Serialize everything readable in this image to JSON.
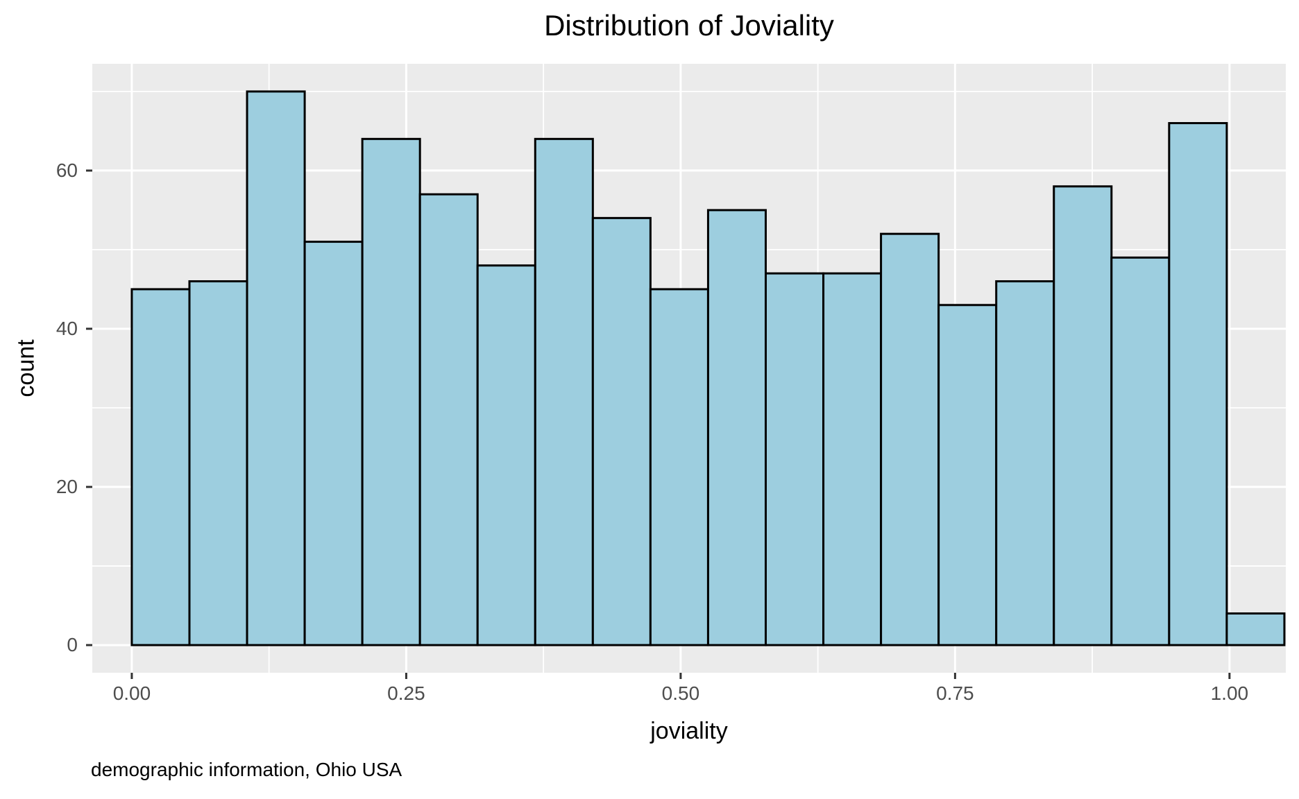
{
  "chart_data": {
    "type": "bar",
    "subtype": "histogram",
    "title": "Distribution of Joviality",
    "xlabel": "joviality",
    "ylabel": "count",
    "caption": "demographic information, Ohio USA",
    "bin_start": 0,
    "bin_width": 0.0525,
    "counts": [
      45,
      46,
      70,
      51,
      64,
      57,
      48,
      64,
      54,
      45,
      55,
      47,
      47,
      52,
      43,
      46,
      58,
      49,
      66,
      4
    ],
    "x_ticks": [
      {
        "value": 0.0,
        "label": "0.00"
      },
      {
        "value": 0.25,
        "label": "0.25"
      },
      {
        "value": 0.5,
        "label": "0.50"
      },
      {
        "value": 0.75,
        "label": "0.75"
      },
      {
        "value": 1.0,
        "label": "1.00"
      }
    ],
    "y_ticks": [
      {
        "value": 0,
        "label": "0"
      },
      {
        "value": 20,
        "label": "20"
      },
      {
        "value": 40,
        "label": "40"
      },
      {
        "value": 60,
        "label": "60"
      }
    ],
    "x_minor_gridlines": [
      0.125,
      0.375,
      0.625,
      0.875
    ],
    "y_minor_gridlines": [
      10,
      30,
      50,
      70
    ],
    "xlim": [
      -0.036,
      1.0513
    ],
    "ylim": [
      -3.5,
      73.5
    ],
    "grid": true,
    "legend": "none",
    "colors": {
      "bar_fill": "#9dcedf",
      "bar_stroke": "#000000",
      "panel_background": "#ebebeb",
      "gridline": "#ffffff",
      "tick_label": "#4d4d4d",
      "tick_mark": "#333333",
      "text": "#000000",
      "figure_background": "#ffffff"
    }
  }
}
